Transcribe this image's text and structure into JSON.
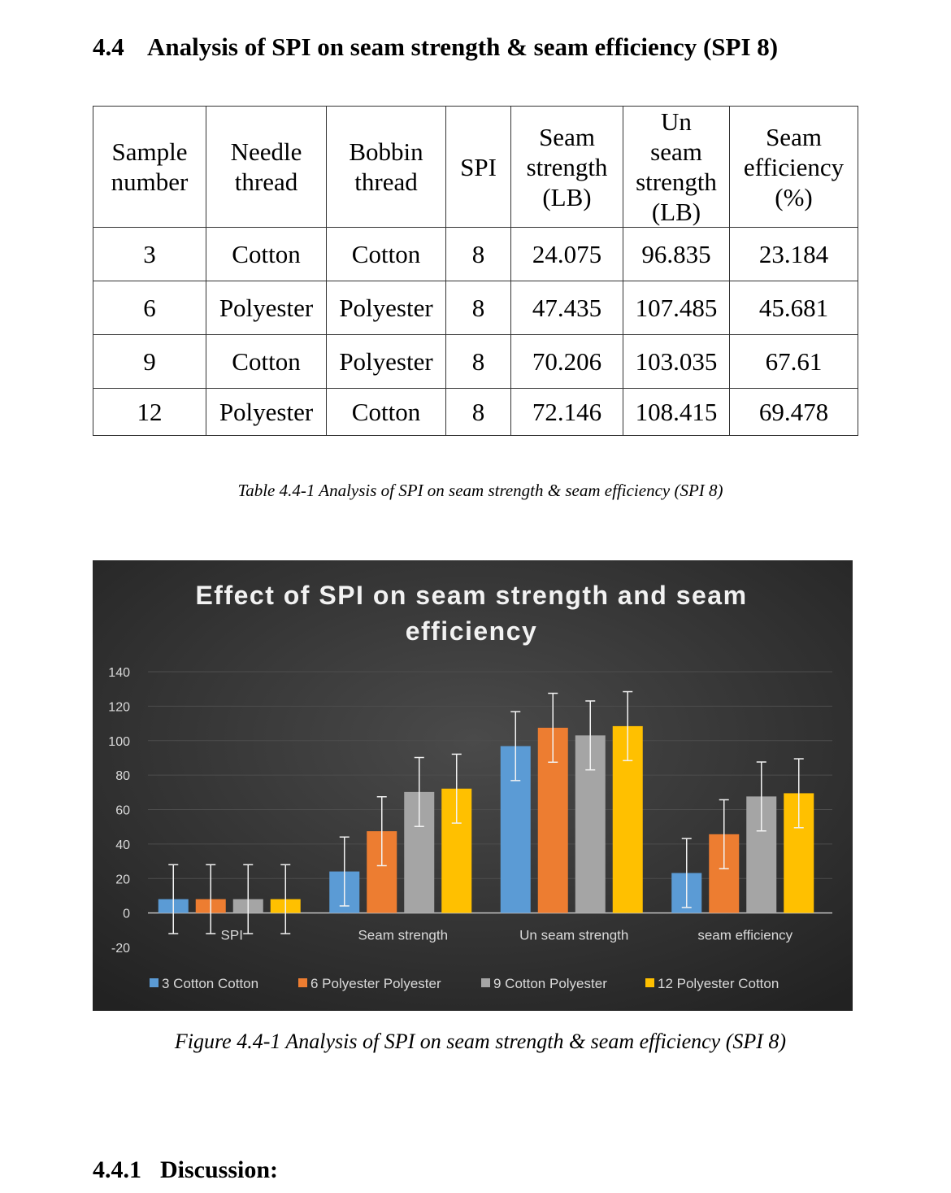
{
  "section_heading": {
    "number": "4.4",
    "title": "Analysis of SPI on seam strength & seam efficiency (SPI 8)"
  },
  "table": {
    "headers": [
      [
        "Sample",
        "number"
      ],
      [
        "Needle",
        "thread"
      ],
      [
        "Bobbin",
        "thread"
      ],
      [
        "SPI"
      ],
      [
        "Seam",
        "strength",
        "(LB)"
      ],
      [
        "Un",
        "seam",
        "strength",
        "(LB)"
      ],
      [
        "Seam",
        "efficiency",
        "(%)"
      ]
    ],
    "rows": [
      [
        "3",
        "Cotton",
        "Cotton",
        "8",
        "24.075",
        "96.835",
        "23.184"
      ],
      [
        "6",
        "Polyester",
        "Polyester",
        "8",
        "47.435",
        "107.485",
        "45.681"
      ],
      [
        "9",
        "Cotton",
        "Polyester",
        "8",
        "70.206",
        "103.035",
        "67.61"
      ],
      [
        "12",
        "Polyester",
        "Cotton",
        "8",
        "72.146",
        "108.415",
        "69.478"
      ]
    ],
    "caption": "Table 4.4-1 Analysis of SPI on seam strength & seam efficiency (SPI 8)"
  },
  "chart_data": {
    "type": "bar",
    "title": "Effect of SPI on seam strength and seam efficiency",
    "categories": [
      "SPI",
      "Seam strength",
      "Un seam strength",
      "seam efficiency"
    ],
    "series": [
      {
        "name": "3 Cotton  Cotton",
        "values": [
          8,
          24.075,
          96.835,
          23.184
        ],
        "color": "#5b9bd5"
      },
      {
        "name": "6 Polyester  Polyester",
        "values": [
          8,
          47.435,
          107.485,
          45.681
        ],
        "color": "#ed7d31"
      },
      {
        "name": "9 Cotton  Polyester",
        "values": [
          8,
          70.206,
          103.035,
          67.61
        ],
        "color": "#a5a5a5"
      },
      {
        "name": "12 Polyester  Cotton",
        "values": [
          8,
          72.146,
          108.415,
          69.478
        ],
        "color": "#ffc000"
      }
    ],
    "error_bar": 20,
    "ylim": [
      -20,
      140
    ],
    "yticks": [
      "-20",
      "0",
      "20",
      "40",
      "60",
      "80",
      "100",
      "120",
      "140"
    ],
    "grid": true,
    "legend_position": "bottom",
    "background": "#2b2b2b"
  },
  "figure_caption": "Figure 4.4-1 Analysis of SPI on seam strength & seam efficiency (SPI 8)",
  "subsection_heading": {
    "number": "4.4.1",
    "title": "Discussion:"
  }
}
